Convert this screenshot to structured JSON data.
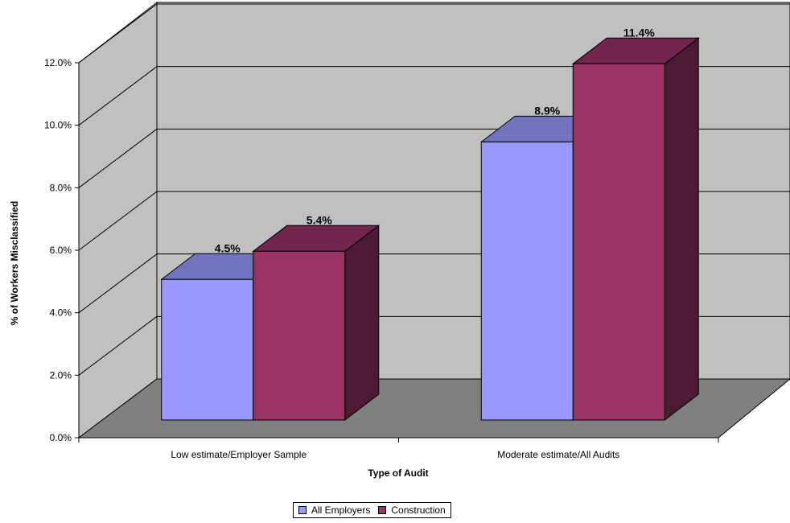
{
  "chart_data": {
    "type": "bar",
    "three_d": true,
    "categories": [
      "Low estimate/Employer Sample",
      "Moderate estimate/All Audits"
    ],
    "series": [
      {
        "name": "All Employers",
        "values": [
          4.5,
          8.9
        ],
        "labels": [
          "4.5%",
          "8.9%"
        ],
        "color": "#9999ff"
      },
      {
        "name": "Construction",
        "values": [
          5.4,
          11.4
        ],
        "labels": [
          "5.4%",
          "11.4%"
        ],
        "color": "#993366"
      }
    ],
    "ylabel": "% of Workers Misclassified",
    "xlabel": "Type of Audit",
    "ylim": [
      0,
      12
    ],
    "yticks": [
      "0.0%",
      "2.0%",
      "4.0%",
      "6.0%",
      "8.0%",
      "10.0%",
      "12.0%"
    ],
    "grid": true,
    "legend_position": "bottom",
    "colors": {
      "wall": "#c0c0c0",
      "floor": "#808080"
    }
  }
}
